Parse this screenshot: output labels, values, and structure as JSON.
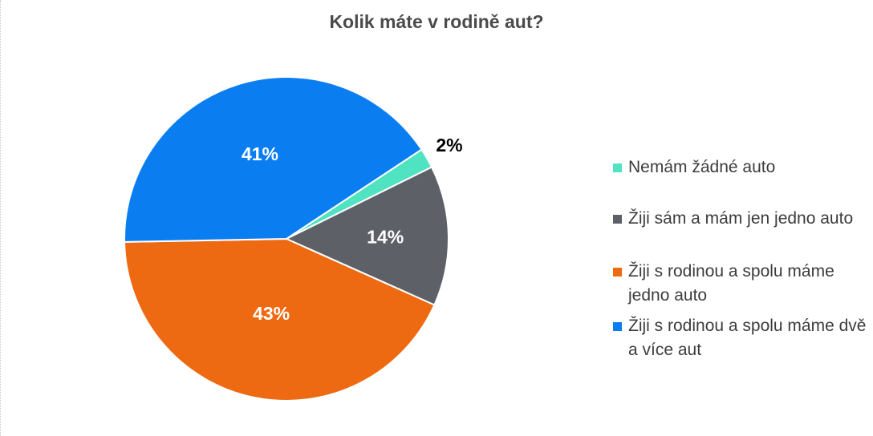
{
  "chart_data": {
    "type": "pie",
    "title": "Kolik máte v rodině aut?",
    "legend_position": "right",
    "slices": [
      {
        "label": "Nemám žádné auto",
        "value": 2,
        "value_label": "2%",
        "color": "#4fe3c2"
      },
      {
        "label": "Žiji sám a mám jen jedno auto",
        "value": 14,
        "value_label": "14%",
        "color": "#5d6167"
      },
      {
        "label": "Žiji s rodinou a spolu máme jedno auto",
        "value": 43,
        "value_label": "43%",
        "color": "#ee6a12"
      },
      {
        "label": "Žiji s rodinou a spolu máme dvě a více aut",
        "value": 41,
        "value_label": "41%",
        "color": "#0a7ef0"
      }
    ]
  }
}
